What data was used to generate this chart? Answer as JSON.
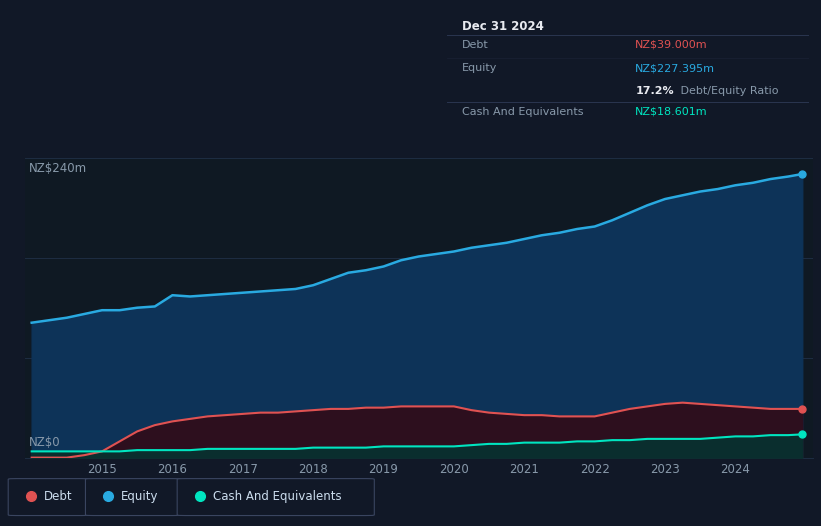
{
  "bg_color": "#111827",
  "plot_bg_color": "#0f1923",
  "grid_color": "#1e2d42",
  "ylabel_top": "NZ$240m",
  "ylabel_bottom": "NZ$0",
  "ylim": [
    0,
    240
  ],
  "years": [
    2014.0,
    2014.25,
    2014.5,
    2014.75,
    2015.0,
    2015.25,
    2015.5,
    2015.75,
    2016.0,
    2016.25,
    2016.5,
    2016.75,
    2017.0,
    2017.25,
    2017.5,
    2017.75,
    2018.0,
    2018.25,
    2018.5,
    2018.75,
    2019.0,
    2019.25,
    2019.5,
    2019.75,
    2020.0,
    2020.25,
    2020.5,
    2020.75,
    2021.0,
    2021.25,
    2021.5,
    2021.75,
    2022.0,
    2022.25,
    2022.5,
    2022.75,
    2023.0,
    2023.25,
    2023.5,
    2023.75,
    2024.0,
    2024.25,
    2024.5,
    2024.75,
    2024.95
  ],
  "equity": [
    108,
    110,
    112,
    115,
    118,
    118,
    120,
    121,
    130,
    129,
    130,
    131,
    132,
    133,
    134,
    135,
    138,
    143,
    148,
    150,
    153,
    158,
    161,
    163,
    165,
    168,
    170,
    172,
    175,
    178,
    180,
    183,
    185,
    190,
    196,
    202,
    207,
    210,
    213,
    215,
    218,
    220,
    223,
    225,
    227
  ],
  "debt": [
    0,
    0,
    0,
    2,
    5,
    13,
    21,
    26,
    29,
    31,
    33,
    34,
    35,
    36,
    36,
    37,
    38,
    39,
    39,
    40,
    40,
    41,
    41,
    41,
    41,
    38,
    36,
    35,
    34,
    34,
    33,
    33,
    33,
    36,
    39,
    41,
    43,
    44,
    43,
    42,
    41,
    40,
    39,
    39,
    39
  ],
  "cash": [
    5,
    5,
    5,
    5,
    5,
    5,
    6,
    6,
    6,
    6,
    7,
    7,
    7,
    7,
    7,
    7,
    8,
    8,
    8,
    8,
    9,
    9,
    9,
    9,
    9,
    10,
    11,
    11,
    12,
    12,
    12,
    13,
    13,
    14,
    14,
    15,
    15,
    15,
    15,
    16,
    17,
    17,
    18,
    18,
    18.6
  ],
  "equity_color": "#29aae1",
  "debt_color": "#e05252",
  "cash_color": "#00e5c0",
  "equity_fill": "#0d3358",
  "debt_fill": "#2d0f1e",
  "cash_fill": "#0a2e2e",
  "legend_items": [
    "Debt",
    "Equity",
    "Cash And Equivalents"
  ],
  "legend_colors": [
    "#e05252",
    "#29aae1",
    "#00e5c0"
  ],
  "info_box_bg": "#060a10",
  "info_box_border": "#2a3550",
  "info_text_color": "#8899aa",
  "info_title_color": "#e8eaf0",
  "info_debt_color": "#e05252",
  "info_equity_color": "#29aae1",
  "info_cash_color": "#00e5c0",
  "info_ratio_bold_color": "#e8eaf0",
  "xticks": [
    2015,
    2016,
    2017,
    2018,
    2019,
    2020,
    2021,
    2022,
    2023,
    2024
  ]
}
